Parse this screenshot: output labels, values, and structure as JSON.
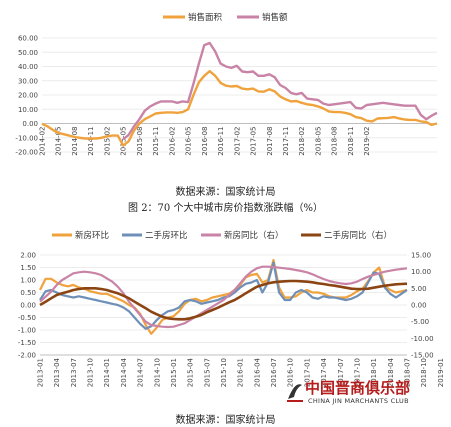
{
  "charts": [
    {
      "legend": [
        "销售面积",
        "销售额"
      ],
      "source": "数据来源：国家统计局"
    },
    {
      "title": "图 2：70 个大中城市房价指数涨跌幅（%）",
      "legend": [
        "新房环比",
        "二手房环比",
        "新房同比（右）",
        "二手房同比（右）"
      ],
      "source": "数据来源：国家统计局"
    }
  ],
  "watermark": {
    "cn": "中国晋商俱乐部",
    "en": "CHINA JIN MARCHANTS CLUB"
  },
  "chart_data": [
    {
      "type": "line",
      "x_ticks": [
        "2014-02",
        "2014-05",
        "2014-08",
        "2014-11",
        "2015-02",
        "2015-05",
        "2015-08",
        "2015-11",
        "2016-02",
        "2016-05",
        "2016-08",
        "2016-11",
        "2017-02",
        "2017-05",
        "2017-08",
        "2017-11",
        "2018-02",
        "2018-05",
        "2018-08",
        "2018-11",
        "2019-02"
      ],
      "ylim": [
        -20,
        60
      ],
      "y_ticks": [
        "-20.00",
        "-10.00",
        "0.00",
        "10.00",
        "20.00",
        "30.00",
        "40.00",
        "50.00",
        "60.00"
      ],
      "colors": [
        "#f0a23c",
        "#c983a6"
      ],
      "series": [
        {
          "name": "销售面积",
          "values": [
            -0.2,
            -2,
            -4.5,
            -6.5,
            -7.5,
            -8.5,
            -9.5,
            -10,
            -10.5,
            -10.5,
            -10.5,
            -10,
            -9,
            -8.5,
            -8.5,
            -15.5,
            -12.5,
            -5,
            0,
            3,
            5,
            7,
            7.5,
            7.8,
            7.8,
            7.5,
            8,
            10,
            20,
            29,
            33.5,
            36.8,
            33.5,
            28.5,
            26.5,
            26,
            26.3,
            24.5,
            24,
            24.5,
            22.5,
            22.3,
            24,
            22.5,
            19,
            17,
            15.5,
            15.8,
            14.5,
            13.5,
            13,
            12,
            10.5,
            8.5,
            8,
            8,
            7.5,
            6.5,
            4.5,
            3.8,
            2,
            1.5,
            3.5,
            3.7,
            3.9,
            4.5,
            3.6,
            2.8,
            2.5,
            2.5,
            1.5,
            1,
            -1,
            0
          ]
        },
        {
          "name": "销售额",
          "values": [
            null,
            null,
            null,
            null,
            null,
            null,
            null,
            null,
            null,
            null,
            null,
            null,
            null,
            null,
            null,
            -11,
            -8,
            -2,
            3,
            9,
            12,
            14,
            15.5,
            15.5,
            15.5,
            14.5,
            15.5,
            15,
            28,
            42,
            55,
            56.5,
            50.5,
            42,
            40,
            39,
            40.5,
            36.5,
            36,
            36.5,
            33.5,
            33.5,
            34.5,
            32.5,
            27,
            25,
            21.5,
            20.5,
            21.5,
            17.5,
            17,
            16.5,
            14,
            13,
            13.5,
            14,
            14.5,
            15,
            11,
            10.5,
            13,
            13.5,
            14,
            14.5,
            14,
            13.5,
            13,
            12.5,
            12.5,
            12.5,
            6,
            3,
            5.5,
            7.5
          ]
        }
      ]
    },
    {
      "type": "line",
      "x_ticks": [
        "2013-01",
        "2013-04",
        "2013-07",
        "2013-10",
        "2014-01",
        "2014-04",
        "2014-07",
        "2014-10",
        "2015-01",
        "2015-04",
        "2015-07",
        "2015-10",
        "2016-01",
        "2016-04",
        "2016-07",
        "2016-10",
        "2017-01",
        "2017-04",
        "2017-07",
        "2017-10",
        "2018-01",
        "2018-04",
        "2018-07",
        "2018-10",
        "2019-01"
      ],
      "ylim_left": [
        -2.0,
        2.0
      ],
      "ylim_right": [
        -15,
        15
      ],
      "y_ticks_left": [
        "-2.00",
        "-1.50",
        "-1.00",
        "-0.50",
        "0.00",
        "0.50",
        "1.00",
        "1.50",
        "2.00"
      ],
      "y_ticks_right": [
        "-15.00",
        "-10.00",
        "-5.00",
        "0.00",
        "5.00",
        "10.00",
        "15.00"
      ],
      "colors": [
        "#f0a23c",
        "#6e8fb7",
        "#c983a6",
        "#8b4513"
      ],
      "series": [
        {
          "name": "新房环比",
          "axis": "left",
          "values": [
            0.6,
            1.05,
            1.05,
            0.9,
            0.8,
            0.75,
            0.8,
            0.7,
            0.65,
            0.55,
            0.5,
            0.45,
            0.45,
            0.35,
            0.25,
            0.15,
            0.0,
            -0.1,
            -0.35,
            -0.8,
            -1.15,
            -0.9,
            -0.6,
            -0.5,
            -0.45,
            -0.25,
            0.05,
            0.2,
            0.25,
            0.15,
            0.2,
            0.3,
            0.35,
            0.4,
            0.45,
            0.6,
            0.8,
            1.1,
            1.2,
            1.25,
            0.9,
            1.0,
            1.8,
            0.7,
            0.3,
            0.3,
            0.35,
            0.5,
            0.6,
            0.5,
            0.5,
            0.45,
            0.35,
            0.3,
            0.3,
            0.3,
            0.4,
            0.55,
            0.65,
            0.95,
            1.3,
            1.5,
            0.75,
            0.6,
            0.5,
            0.55,
            0.6
          ]
        },
        {
          "name": "二手房环比",
          "axis": "left",
          "values": [
            0.2,
            0.55,
            0.6,
            0.5,
            0.4,
            0.35,
            0.3,
            0.35,
            0.3,
            0.25,
            0.2,
            0.15,
            0.1,
            0.05,
            0.0,
            -0.1,
            -0.25,
            -0.5,
            -0.75,
            -0.95,
            -0.85,
            -0.6,
            -0.4,
            -0.25,
            -0.2,
            -0.1,
            0.15,
            0.2,
            0.15,
            0.05,
            0.1,
            0.15,
            0.2,
            0.3,
            0.35,
            0.5,
            0.7,
            0.85,
            0.9,
            1.0,
            0.5,
            0.9,
            1.7,
            0.5,
            0.2,
            0.2,
            0.5,
            0.6,
            0.5,
            0.3,
            0.25,
            0.35,
            0.3,
            0.3,
            0.25,
            0.2,
            0.25,
            0.35,
            0.5,
            0.9,
            1.3,
            1.25,
            0.7,
            0.45,
            0.3,
            0.45,
            0.6
          ]
        },
        {
          "name": "新房同比（右）",
          "axis": "right",
          "values": [
            1.0,
            2.5,
            4.0,
            6.0,
            7.5,
            8.5,
            9.5,
            9.8,
            10.0,
            9.8,
            9.5,
            9.0,
            8.0,
            7.0,
            5.5,
            3.5,
            1.0,
            -1.0,
            -3.0,
            -5.0,
            -6.0,
            -6.3,
            -6.5,
            -6.6,
            -6.5,
            -6.0,
            -5.5,
            -4.5,
            -3.5,
            -2.5,
            -1.5,
            -0.5,
            0.5,
            1.5,
            3.0,
            4.5,
            6.5,
            8.5,
            10.0,
            11.0,
            11.5,
            11.5,
            11.4,
            11.2,
            11.0,
            10.8,
            10.5,
            10.2,
            9.8,
            9.2,
            8.5,
            7.8,
            7.2,
            6.8,
            6.5,
            6.3,
            6.5,
            7.0,
            7.8,
            8.5,
            9.0,
            9.5,
            10.0,
            10.3,
            10.6,
            10.8,
            11.0
          ]
        },
        {
          "name": "二手房同比（右）",
          "axis": "right",
          "values": [
            0.0,
            1.0,
            2.0,
            3.0,
            3.5,
            4.0,
            4.5,
            4.8,
            5.0,
            5.0,
            5.0,
            4.8,
            4.5,
            4.0,
            3.5,
            2.8,
            2.0,
            1.0,
            0.0,
            -1.0,
            -2.0,
            -2.8,
            -3.5,
            -4.0,
            -4.2,
            -4.3,
            -4.3,
            -4.0,
            -3.5,
            -3.0,
            -2.2,
            -1.5,
            -0.8,
            0.0,
            0.8,
            1.5,
            2.5,
            3.5,
            4.5,
            5.5,
            6.0,
            6.5,
            6.8,
            7.0,
            7.1,
            7.2,
            7.2,
            7.1,
            7.0,
            6.8,
            6.5,
            6.3,
            6.0,
            5.8,
            5.5,
            5.2,
            4.9,
            4.8,
            4.8,
            4.9,
            5.2,
            5.5,
            5.8,
            6.0,
            6.2,
            6.3,
            6.4
          ]
        }
      ]
    }
  ]
}
